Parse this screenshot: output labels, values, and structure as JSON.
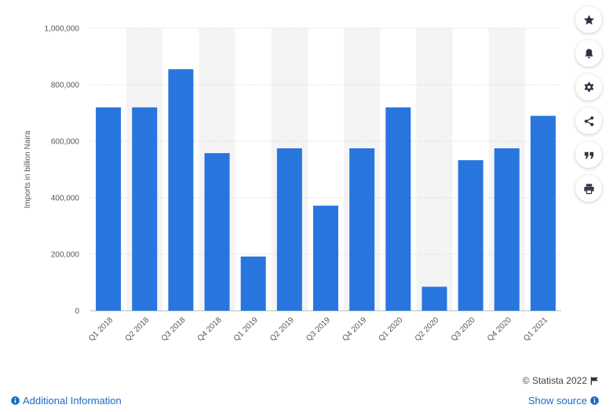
{
  "chart_data": {
    "type": "bar",
    "categories": [
      "Q1 2018",
      "Q2 2018",
      "Q3 2018",
      "Q4 2018",
      "Q1 2019",
      "Q2 2019",
      "Q3 2019",
      "Q4 2019",
      "Q1 2020",
      "Q2 2020",
      "Q3 2020",
      "Q4 2020",
      "Q1 2021"
    ],
    "values": [
      720000,
      720000,
      855000,
      558000,
      192000,
      575000,
      372000,
      575000,
      720000,
      85000,
      533000,
      575000,
      690000
    ],
    "ylabel": "Imports in billion Naira",
    "xlabel": "",
    "ylim": [
      0,
      1000000
    ],
    "yticks": [
      0,
      200000,
      400000,
      600000,
      800000,
      1000000
    ],
    "ytick_labels": [
      "0",
      "200,000",
      "400,000",
      "600,000",
      "800,000",
      "1,000,000"
    ],
    "bar_color": "#2876dd",
    "grid": true,
    "alternating_column_shading": true
  },
  "toolbar": {
    "buttons": [
      {
        "name": "star-icon"
      },
      {
        "name": "bell-icon"
      },
      {
        "name": "gear-icon"
      },
      {
        "name": "share-icon"
      },
      {
        "name": "quote-icon"
      },
      {
        "name": "print-icon"
      }
    ]
  },
  "footer": {
    "copyright": "© Statista 2022",
    "additional_info": "Additional Information",
    "show_source": "Show source"
  }
}
